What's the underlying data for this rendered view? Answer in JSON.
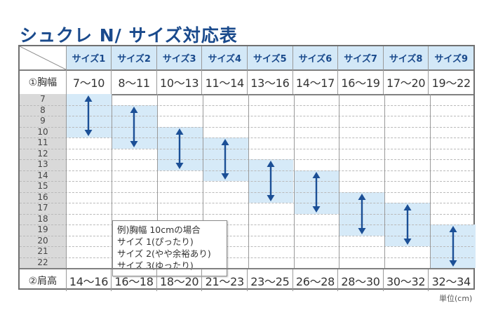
{
  "title": "シュクレ N/ サイズ対応表",
  "header": {
    "sizes": [
      "サイズ1",
      "サイズ2",
      "サイズ3",
      "サイズ4",
      "サイズ5",
      "サイズ6",
      "サイズ7",
      "サイズ8",
      "サイズ9"
    ]
  },
  "chest": {
    "label": "①胸幅",
    "values": [
      "7～10",
      "8～11",
      "10～13",
      "11～14",
      "13～16",
      "14～17",
      "16～19",
      "17～20",
      "19～22"
    ]
  },
  "shoulder": {
    "label": "②肩高",
    "values": [
      "14～16",
      "16～18",
      "18～20",
      "21～23",
      "23～25",
      "26～28",
      "28～30",
      "30～32",
      "32～34"
    ]
  },
  "grid": {
    "scale": [
      "7",
      "8",
      "9",
      "10",
      "11",
      "12",
      "13",
      "14",
      "15",
      "16",
      "17",
      "18",
      "19",
      "20",
      "21",
      "22"
    ],
    "ranges": [
      [
        7,
        10
      ],
      [
        8,
        11
      ],
      [
        10,
        13
      ],
      [
        11,
        14
      ],
      [
        13,
        16
      ],
      [
        14,
        17
      ],
      [
        16,
        19
      ],
      [
        17,
        20
      ],
      [
        19,
        22
      ]
    ]
  },
  "note": {
    "line1": "例)胸幅 10cmの場合",
    "line2": "サイズ 1(ぴったり)",
    "line3": "サイズ 2(やや余裕あり)",
    "line4": "サイズ 3(ゆったり)"
  },
  "unit": "単位(cm)",
  "colors": {
    "title": "#1a4a8c",
    "header_bg": "#d3e8f7",
    "band": "#d6eaf8",
    "arrow": "#1b4f96",
    "scale_bg": "#d9d9d9"
  }
}
